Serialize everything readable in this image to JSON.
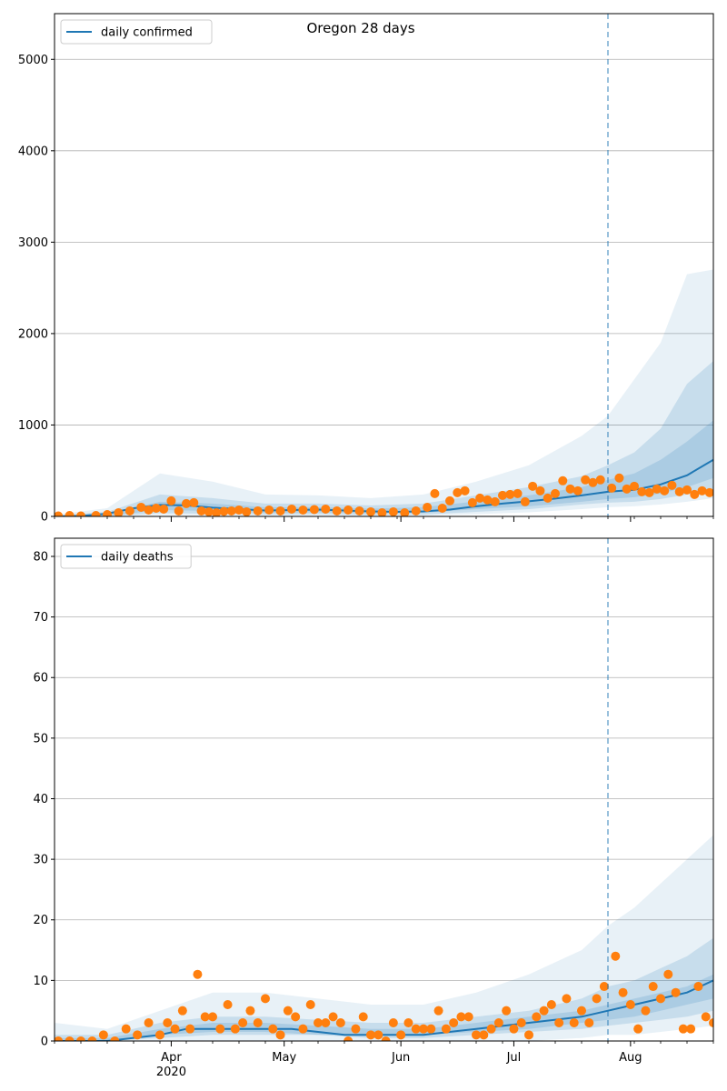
{
  "figure": {
    "title": "Oregon 28 days",
    "colors": {
      "line": "#1f77b4",
      "points": "#ff7f0e",
      "grid": "#b0b0b0",
      "forecast_marker": "#1f77b4"
    }
  },
  "chart_data": [
    {
      "type": "line",
      "name": "daily-confirmed",
      "legend": "daily confirmed",
      "legend_placement": "upper-left",
      "grid": "horizontal",
      "x_start": "2020-03-01",
      "x_end": "2020-08-23",
      "forecast_start": "2020-07-26",
      "ylim": [
        0,
        5500
      ],
      "yticks": [
        0,
        1000,
        2000,
        3000,
        4000,
        5000
      ],
      "xtick_labels": [
        {
          "date": "2020-04-01",
          "label": "Apr",
          "sub": "2020"
        },
        {
          "date": "2020-05-01",
          "label": "May",
          "sub": ""
        },
        {
          "date": "2020-06-01",
          "label": "Jun",
          "sub": ""
        },
        {
          "date": "2020-07-01",
          "label": "Jul",
          "sub": ""
        },
        {
          "date": "2020-08-01",
          "label": "Aug",
          "sub": ""
        }
      ],
      "series": [
        {
          "kind": "line",
          "x": [
            "2020-03-01",
            "2020-03-08",
            "2020-03-15",
            "2020-03-22",
            "2020-03-29",
            "2020-04-05",
            "2020-04-12",
            "2020-04-19",
            "2020-04-26",
            "2020-05-03",
            "2020-05-10",
            "2020-05-17",
            "2020-05-24",
            "2020-05-31",
            "2020-06-07",
            "2020-06-14",
            "2020-06-21",
            "2020-06-28",
            "2020-07-05",
            "2020-07-12",
            "2020-07-19",
            "2020-07-26",
            "2020-08-02",
            "2020-08-09",
            "2020-08-16",
            "2020-08-23"
          ],
          "y": [
            0,
            5,
            30,
            90,
            125,
            120,
            95,
            80,
            65,
            70,
            75,
            65,
            55,
            50,
            55,
            75,
            110,
            140,
            165,
            195,
            230,
            270,
            290,
            350,
            450,
            620
          ]
        },
        {
          "kind": "band",
          "x": [
            "2020-03-01",
            "2020-03-15",
            "2020-03-29",
            "2020-04-12",
            "2020-04-26",
            "2020-05-10",
            "2020-05-24",
            "2020-06-07",
            "2020-06-21",
            "2020-07-05",
            "2020-07-19",
            "2020-07-26",
            "2020-08-02",
            "2020-08-09",
            "2020-08-16",
            "2020-08-23"
          ],
          "lower": [
            0,
            2,
            35,
            30,
            20,
            25,
            15,
            20,
            50,
            80,
            130,
            150,
            160,
            190,
            240,
            300
          ],
          "upper": [
            10,
            50,
            240,
            200,
            140,
            140,
            120,
            140,
            230,
            320,
            440,
            560,
            700,
            960,
            1450,
            1700
          ]
        },
        {
          "kind": "band",
          "x": [
            "2020-03-01",
            "2020-03-15",
            "2020-03-29",
            "2020-04-12",
            "2020-04-26",
            "2020-05-10",
            "2020-05-24",
            "2020-06-07",
            "2020-06-21",
            "2020-07-05",
            "2020-07-19",
            "2020-07-26",
            "2020-08-02",
            "2020-08-09",
            "2020-08-16",
            "2020-08-23"
          ],
          "lower": [
            0,
            5,
            70,
            60,
            40,
            45,
            35,
            40,
            80,
            110,
            160,
            190,
            210,
            250,
            320,
            420
          ],
          "upper": [
            5,
            30,
            160,
            140,
            100,
            100,
            85,
            100,
            165,
            230,
            320,
            400,
            470,
            620,
            820,
            1050
          ]
        },
        {
          "kind": "band",
          "x": [
            "2020-03-01",
            "2020-03-15",
            "2020-03-29",
            "2020-04-12",
            "2020-04-26",
            "2020-05-10",
            "2020-05-24",
            "2020-06-07",
            "2020-06-21",
            "2020-07-05",
            "2020-07-19",
            "2020-07-26",
            "2020-08-02",
            "2020-08-09",
            "2020-08-16",
            "2020-08-23"
          ],
          "lower": [
            0,
            1,
            15,
            10,
            8,
            10,
            5,
            10,
            25,
            45,
            80,
            100,
            110,
            130,
            160,
            200
          ],
          "upper": [
            20,
            90,
            470,
            380,
            240,
            230,
            200,
            240,
            380,
            560,
            880,
            1100,
            1500,
            1900,
            2650,
            2700
          ]
        },
        {
          "kind": "points",
          "x": [
            "2020-03-02",
            "2020-03-05",
            "2020-03-08",
            "2020-03-12",
            "2020-03-15",
            "2020-03-18",
            "2020-03-21",
            "2020-03-24",
            "2020-03-26",
            "2020-03-28",
            "2020-03-30",
            "2020-04-01",
            "2020-04-03",
            "2020-04-05",
            "2020-04-07",
            "2020-04-09",
            "2020-04-11",
            "2020-04-13",
            "2020-04-15",
            "2020-04-17",
            "2020-04-19",
            "2020-04-21",
            "2020-04-24",
            "2020-04-27",
            "2020-04-30",
            "2020-05-03",
            "2020-05-06",
            "2020-05-09",
            "2020-05-12",
            "2020-05-15",
            "2020-05-18",
            "2020-05-21",
            "2020-05-24",
            "2020-05-27",
            "2020-05-30",
            "2020-06-02",
            "2020-06-05",
            "2020-06-08",
            "2020-06-10",
            "2020-06-12",
            "2020-06-14",
            "2020-06-16",
            "2020-06-18",
            "2020-06-20",
            "2020-06-22",
            "2020-06-24",
            "2020-06-26",
            "2020-06-28",
            "2020-06-30",
            "2020-07-02",
            "2020-07-04",
            "2020-07-06",
            "2020-07-08",
            "2020-07-10",
            "2020-07-12",
            "2020-07-14",
            "2020-07-16",
            "2020-07-18",
            "2020-07-20",
            "2020-07-22",
            "2020-07-24",
            "2020-07-27",
            "2020-07-29",
            "2020-07-31",
            "2020-08-02",
            "2020-08-04",
            "2020-08-06",
            "2020-08-08",
            "2020-08-10",
            "2020-08-12",
            "2020-08-14",
            "2020-08-16",
            "2020-08-18",
            "2020-08-20",
            "2020-08-22"
          ],
          "y": [
            5,
            10,
            5,
            10,
            20,
            40,
            60,
            100,
            70,
            90,
            80,
            170,
            60,
            140,
            150,
            60,
            50,
            40,
            55,
            60,
            70,
            50,
            60,
            70,
            60,
            80,
            70,
            75,
            80,
            60,
            70,
            60,
            50,
            40,
            50,
            40,
            60,
            100,
            250,
            90,
            170,
            260,
            280,
            150,
            200,
            180,
            160,
            230,
            240,
            250,
            160,
            330,
            280,
            200,
            250,
            390,
            300,
            280,
            400,
            370,
            400,
            310,
            420,
            300,
            330,
            270,
            260,
            300,
            280,
            340,
            270,
            290,
            240,
            280,
            260
          ]
        }
      ]
    },
    {
      "type": "line",
      "name": "daily-deaths",
      "legend": "daily deaths",
      "legend_placement": "upper-left",
      "grid": "horizontal",
      "x_start": "2020-03-01",
      "x_end": "2020-08-23",
      "forecast_start": "2020-07-26",
      "ylim": [
        0,
        83
      ],
      "yticks": [
        0,
        10,
        20,
        30,
        40,
        50,
        60,
        70,
        80
      ],
      "xtick_labels": [
        {
          "date": "2020-04-01",
          "label": "Apr",
          "sub": "2020"
        },
        {
          "date": "2020-05-01",
          "label": "May",
          "sub": ""
        },
        {
          "date": "2020-06-01",
          "label": "Jun",
          "sub": ""
        },
        {
          "date": "2020-07-01",
          "label": "Jul",
          "sub": ""
        },
        {
          "date": "2020-08-01",
          "label": "Aug",
          "sub": ""
        }
      ],
      "series": [
        {
          "kind": "line",
          "x": [
            "2020-03-01",
            "2020-03-15",
            "2020-03-29",
            "2020-04-05",
            "2020-04-19",
            "2020-05-03",
            "2020-05-10",
            "2020-05-17",
            "2020-05-24",
            "2020-06-07",
            "2020-06-21",
            "2020-07-05",
            "2020-07-19",
            "2020-07-26",
            "2020-08-02",
            "2020-08-09",
            "2020-08-16",
            "2020-08-23"
          ],
          "y": [
            0,
            0,
            1,
            2,
            2,
            2,
            1.5,
            1,
            1,
            1,
            2,
            3,
            4,
            5,
            6,
            7,
            8,
            10
          ]
        },
        {
          "kind": "band",
          "x": [
            "2020-03-01",
            "2020-03-15",
            "2020-03-29",
            "2020-04-12",
            "2020-04-26",
            "2020-05-10",
            "2020-05-24",
            "2020-06-07",
            "2020-06-21",
            "2020-07-05",
            "2020-07-19",
            "2020-07-26",
            "2020-08-02",
            "2020-08-09",
            "2020-08-16",
            "2020-08-23"
          ],
          "lower": [
            0,
            0,
            0.5,
            1,
            1,
            1,
            0.5,
            0.5,
            1,
            1.5,
            2,
            2.5,
            3,
            3.5,
            4,
            5
          ],
          "upper": [
            1,
            1,
            3,
            4,
            4,
            3.5,
            3,
            3,
            4,
            5,
            7,
            9,
            10,
            12,
            14,
            17
          ]
        },
        {
          "kind": "band",
          "x": [
            "2020-03-01",
            "2020-03-15",
            "2020-03-29",
            "2020-04-12",
            "2020-04-26",
            "2020-05-10",
            "2020-05-24",
            "2020-06-07",
            "2020-06-21",
            "2020-07-05",
            "2020-07-19",
            "2020-07-26",
            "2020-08-02",
            "2020-08-09",
            "2020-08-16",
            "2020-08-23"
          ],
          "lower": [
            0,
            0,
            1,
            1.5,
            1.5,
            1,
            1,
            1,
            1.5,
            2,
            3,
            3.5,
            4,
            5,
            6,
            7
          ],
          "upper": [
            0.5,
            0.5,
            2,
            3,
            3,
            2.5,
            2,
            2,
            3,
            4,
            5,
            6,
            7,
            8,
            9,
            11
          ]
        },
        {
          "kind": "band",
          "x": [
            "2020-03-01",
            "2020-03-15",
            "2020-03-29",
            "2020-04-12",
            "2020-04-26",
            "2020-05-10",
            "2020-05-24",
            "2020-06-07",
            "2020-06-21",
            "2020-07-05",
            "2020-07-19",
            "2020-07-26",
            "2020-08-02",
            "2020-08-09",
            "2020-08-16",
            "2020-08-23"
          ],
          "lower": [
            0,
            0,
            0,
            0,
            0,
            0,
            0,
            0,
            0,
            0,
            0.5,
            1,
            1,
            1.5,
            2,
            2.5
          ],
          "upper": [
            3,
            2,
            5,
            8,
            8,
            7,
            6,
            6,
            8,
            11,
            15,
            19,
            22,
            26,
            30,
            34
          ]
        },
        {
          "kind": "points",
          "x": [
            "2020-03-02",
            "2020-03-05",
            "2020-03-08",
            "2020-03-11",
            "2020-03-14",
            "2020-03-17",
            "2020-03-20",
            "2020-03-23",
            "2020-03-26",
            "2020-03-29",
            "2020-03-31",
            "2020-04-02",
            "2020-04-04",
            "2020-04-06",
            "2020-04-08",
            "2020-04-10",
            "2020-04-12",
            "2020-04-14",
            "2020-04-16",
            "2020-04-18",
            "2020-04-20",
            "2020-04-22",
            "2020-04-24",
            "2020-04-26",
            "2020-04-28",
            "2020-04-30",
            "2020-05-02",
            "2020-05-04",
            "2020-05-06",
            "2020-05-08",
            "2020-05-10",
            "2020-05-12",
            "2020-05-14",
            "2020-05-16",
            "2020-05-18",
            "2020-05-20",
            "2020-05-22",
            "2020-05-24",
            "2020-05-26",
            "2020-05-28",
            "2020-05-30",
            "2020-06-01",
            "2020-06-03",
            "2020-06-05",
            "2020-06-07",
            "2020-06-09",
            "2020-06-11",
            "2020-06-13",
            "2020-06-15",
            "2020-06-17",
            "2020-06-19",
            "2020-06-21",
            "2020-06-23",
            "2020-06-25",
            "2020-06-27",
            "2020-06-29",
            "2020-07-01",
            "2020-07-03",
            "2020-07-05",
            "2020-07-07",
            "2020-07-09",
            "2020-07-11",
            "2020-07-13",
            "2020-07-15",
            "2020-07-17",
            "2020-07-19",
            "2020-07-21",
            "2020-07-23",
            "2020-07-25",
            "2020-07-28",
            "2020-07-30",
            "2020-08-01",
            "2020-08-03",
            "2020-08-05",
            "2020-08-07",
            "2020-08-09",
            "2020-08-11",
            "2020-08-13",
            "2020-08-15",
            "2020-08-17",
            "2020-08-19",
            "2020-08-21",
            "2020-08-23"
          ],
          "y": [
            0,
            0,
            0,
            0,
            1,
            0,
            2,
            1,
            3,
            1,
            3,
            2,
            5,
            2,
            11,
            4,
            4,
            2,
            6,
            2,
            3,
            5,
            3,
            7,
            2,
            1,
            5,
            4,
            2,
            6,
            3,
            3,
            4,
            3,
            0,
            2,
            4,
            1,
            1,
            0,
            3,
            1,
            3,
            2,
            2,
            2,
            5,
            2,
            3,
            4,
            4,
            1,
            1,
            2,
            3,
            5,
            2,
            3,
            1,
            4,
            5,
            6,
            3,
            7,
            3,
            5,
            3,
            7,
            9,
            14,
            8,
            6,
            2,
            5,
            9,
            7,
            11,
            8,
            2,
            2,
            9,
            4,
            3
          ]
        }
      ]
    }
  ]
}
